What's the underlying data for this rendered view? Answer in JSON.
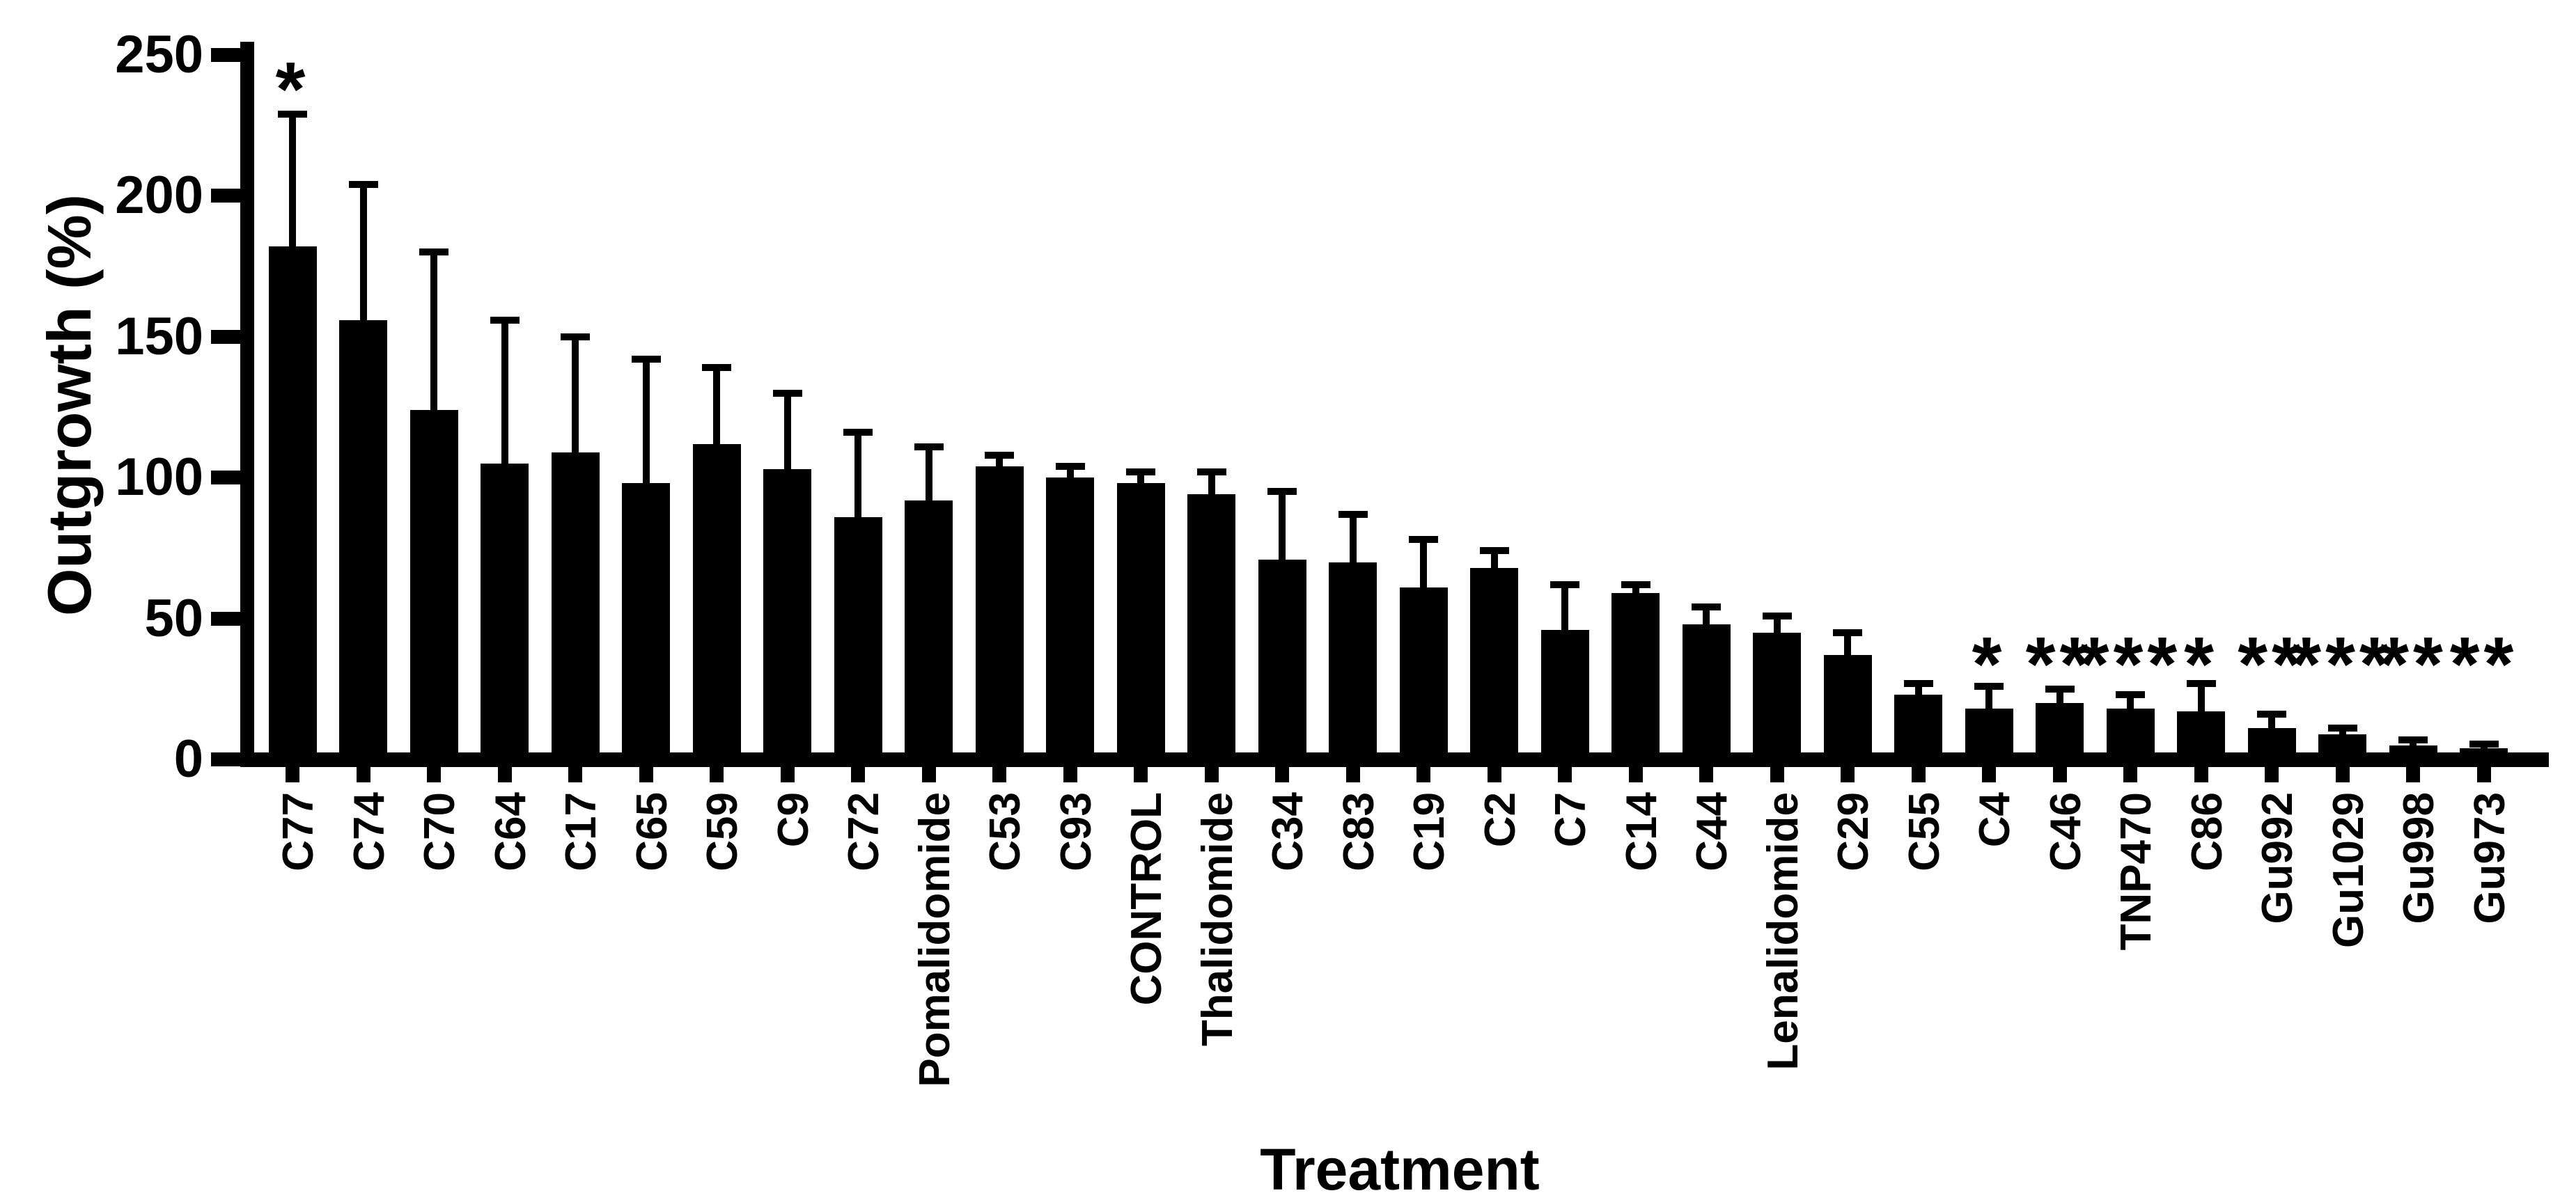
{
  "figure": {
    "background_color": "#ffffff",
    "bar_color": "#000000",
    "axis_color": "#000000",
    "text_color": "#000000"
  },
  "chart_data": {
    "type": "bar",
    "title": "",
    "xlabel": "Treatment",
    "ylabel": "Outgrowth (%)",
    "ylim": [
      0,
      250
    ],
    "yticks": [
      0,
      50,
      100,
      150,
      200,
      250
    ],
    "grid": false,
    "legend": null,
    "error_bars": "upper SD/SEM whiskers with caps",
    "significance_symbols": [
      "*",
      "**",
      "***"
    ],
    "bars": [
      {
        "label": "C77",
        "value": 182,
        "error": 47,
        "sig": "*",
        "sig_at": 243
      },
      {
        "label": "C74",
        "value": 156,
        "error": 48
      },
      {
        "label": "C70",
        "value": 124,
        "error": 56
      },
      {
        "label": "C64",
        "value": 105,
        "error": 51
      },
      {
        "label": "C17",
        "value": 109,
        "error": 41
      },
      {
        "label": "C65",
        "value": 98,
        "error": 44
      },
      {
        "label": "C59",
        "value": 112,
        "error": 27
      },
      {
        "label": "C9",
        "value": 103,
        "error": 27
      },
      {
        "label": "C72",
        "value": 86,
        "error": 30
      },
      {
        "label": "Pomalidomide",
        "value": 92,
        "error": 19
      },
      {
        "label": "C53",
        "value": 104,
        "error": 4
      },
      {
        "label": "C93",
        "value": 100,
        "error": 4
      },
      {
        "label": "CONTROL",
        "value": 98,
        "error": 4
      },
      {
        "label": "Thalidomide",
        "value": 94,
        "error": 8
      },
      {
        "label": "C34",
        "value": 71,
        "error": 24
      },
      {
        "label": "C83",
        "value": 70,
        "error": 17
      },
      {
        "label": "C19",
        "value": 61,
        "error": 17
      },
      {
        "label": "C2",
        "value": 68,
        "error": 6
      },
      {
        "label": "C7",
        "value": 46,
        "error": 16
      },
      {
        "label": "C14",
        "value": 59,
        "error": 3
      },
      {
        "label": "C44",
        "value": 48,
        "error": 6
      },
      {
        "label": "Lenalidomide",
        "value": 45,
        "error": 6
      },
      {
        "label": "C29",
        "value": 37,
        "error": 8
      },
      {
        "label": "C55",
        "value": 23,
        "error": 4
      },
      {
        "label": "C4",
        "value": 18,
        "error": 8,
        "sig": "*",
        "sig_at": 39
      },
      {
        "label": "C46",
        "value": 20,
        "error": 5,
        "sig": "**",
        "sig_at": 39
      },
      {
        "label": "TNP470",
        "value": 18,
        "error": 5,
        "sig": "***",
        "sig_at": 39
      },
      {
        "label": "C86",
        "value": 17,
        "error": 10,
        "sig": "*",
        "sig_at": 39
      },
      {
        "label": "Gu992",
        "value": 11,
        "error": 5,
        "sig": "**",
        "sig_at": 39
      },
      {
        "label": "Gu1029",
        "value": 9,
        "error": 2,
        "sig": "***",
        "sig_at": 39
      },
      {
        "label": "Gu998",
        "value": 5,
        "error": 2,
        "sig": "**",
        "sig_at": 39
      },
      {
        "label": "Gu973",
        "value": 4,
        "error": 1.5,
        "sig": "**",
        "sig_at": 39
      }
    ]
  }
}
